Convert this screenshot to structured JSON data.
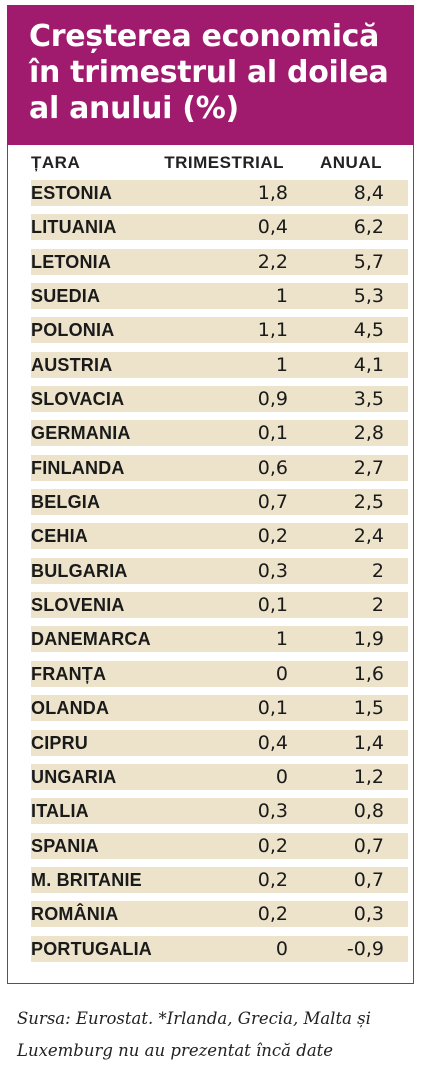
{
  "title": "Creșterea economică\nîn trimestrul al doilea\nal anului (%)",
  "colors": {
    "title_bg": "#a01a6e",
    "row_bg": "#ece3ca",
    "title_text": "#ffffff"
  },
  "columns": {
    "country": "ȚARA",
    "quarterly": "TRIMESTRIAL",
    "annual": "ANUAL"
  },
  "source": "Sursa: Eurostat. *Irlanda, Grecia, Malta și\nLuxemburg nu au prezentat încă date",
  "chart_data": {
    "type": "table",
    "columns": [
      "ȚARA",
      "TRIMESTRIAL",
      "ANUAL"
    ],
    "rows": [
      {
        "country": "ESTONIA",
        "quarterly": "1,8",
        "annual": "8,4"
      },
      {
        "country": "LITUANIA",
        "quarterly": "0,4",
        "annual": "6,2"
      },
      {
        "country": "LETONIA",
        "quarterly": "2,2",
        "annual": "5,7"
      },
      {
        "country": "SUEDIA",
        "quarterly": "1",
        "annual": "5,3"
      },
      {
        "country": "POLONIA",
        "quarterly": "1,1",
        "annual": "4,5"
      },
      {
        "country": "AUSTRIA",
        "quarterly": "1",
        "annual": "4,1"
      },
      {
        "country": "SLOVACIA",
        "quarterly": "0,9",
        "annual": "3,5"
      },
      {
        "country": "GERMANIA",
        "quarterly": "0,1",
        "annual": "2,8"
      },
      {
        "country": "FINLANDA",
        "quarterly": "0,6",
        "annual": "2,7"
      },
      {
        "country": "BELGIA",
        "quarterly": "0,7",
        "annual": "2,5"
      },
      {
        "country": "CEHIA",
        "quarterly": "0,2",
        "annual": "2,4"
      },
      {
        "country": "BULGARIA",
        "quarterly": "0,3",
        "annual": "2"
      },
      {
        "country": "SLOVENIA",
        "quarterly": "0,1",
        "annual": "2"
      },
      {
        "country": "DANEMARCA",
        "quarterly": "1",
        "annual": "1,9"
      },
      {
        "country": "FRANȚA",
        "quarterly": "0",
        "annual": "1,6"
      },
      {
        "country": "OLANDA",
        "quarterly": "0,1",
        "annual": "1,5"
      },
      {
        "country": "CIPRU",
        "quarterly": "0,4",
        "annual": "1,4"
      },
      {
        "country": "UNGARIA",
        "quarterly": "0",
        "annual": "1,2"
      },
      {
        "country": "ITALIA",
        "quarterly": "0,3",
        "annual": "0,8"
      },
      {
        "country": "SPANIA",
        "quarterly": "0,2",
        "annual": "0,7"
      },
      {
        "country": "M. BRITANIE",
        "quarterly": "0,2",
        "annual": "0,7"
      },
      {
        "country": "ROMÂNIA",
        "quarterly": "0,2",
        "annual": "0,3"
      },
      {
        "country": "PORTUGALIA",
        "quarterly": "0",
        "annual": "-0,9"
      }
    ]
  }
}
